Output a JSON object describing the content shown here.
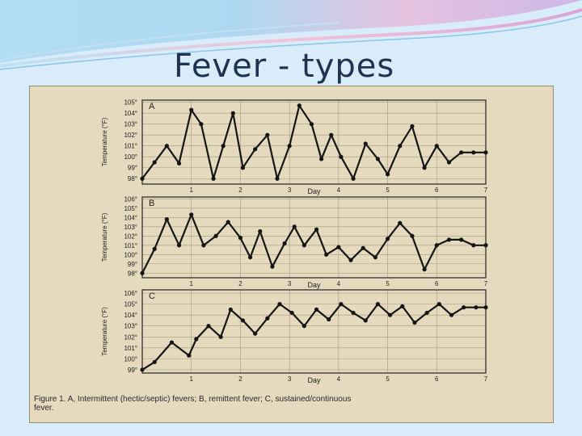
{
  "slide": {
    "title": "Fever - types",
    "theme_colors": {
      "background": "#d8ecf9",
      "title": "#1f3350",
      "photo_paper": "#efe6cd",
      "photo_border": "#7a6a4c"
    }
  },
  "caption": {
    "line1": "Figure 1. A, Intermittent (hectic/septic) fevers; B, remittent fever; C, sustained/continuous",
    "line2": "fever."
  },
  "chart_data": [
    {
      "type": "line",
      "panel_label": "A",
      "xlabel": "Day",
      "ylabel": "Temperature (°F)",
      "yticks": [
        "98°",
        "99°",
        "100°",
        "101°",
        "102°",
        "103°",
        "104°",
        "105°"
      ],
      "xticks": [
        "1",
        "2",
        "3",
        "4",
        "5",
        "6",
        "7"
      ],
      "ylim": [
        97.5,
        105.2
      ],
      "xlim": [
        0,
        7
      ],
      "x": [
        0,
        0.25,
        0.5,
        0.75,
        1,
        1.2,
        1.45,
        1.65,
        1.85,
        2.05,
        2.3,
        2.55,
        2.75,
        3.0,
        3.2,
        3.45,
        3.65,
        3.85,
        4.05,
        4.3,
        4.55,
        4.8,
        5.0,
        5.25,
        5.5,
        5.75,
        6.0,
        6.25,
        6.5,
        6.75,
        7.0
      ],
      "values": [
        98.0,
        99.5,
        101.0,
        99.4,
        104.3,
        103.0,
        98.0,
        101.0,
        104.0,
        99.0,
        100.7,
        102.0,
        98.0,
        101.0,
        104.7,
        103.0,
        99.8,
        102.0,
        100.0,
        98.0,
        101.2,
        99.8,
        98.4,
        101.0,
        102.8,
        99.0,
        101.0,
        99.5,
        100.4,
        100.4,
        100.4
      ],
      "grid": true
    },
    {
      "type": "line",
      "panel_label": "B",
      "xlabel": "Day",
      "ylabel": "Temperature (°F)",
      "yticks": [
        "98°",
        "99°",
        "100°",
        "101°",
        "102°",
        "103°",
        "104°",
        "105°",
        "106°"
      ],
      "xticks": [
        "1",
        "2",
        "3",
        "4",
        "5",
        "6",
        "7"
      ],
      "ylim": [
        97.5,
        106.2
      ],
      "xlim": [
        0,
        7
      ],
      "x": [
        0,
        0.25,
        0.5,
        0.75,
        1,
        1.25,
        1.5,
        1.75,
        2.0,
        2.2,
        2.4,
        2.65,
        2.9,
        3.1,
        3.3,
        3.55,
        3.75,
        4.0,
        4.25,
        4.5,
        4.75,
        5.0,
        5.25,
        5.5,
        5.75,
        6.0,
        6.25,
        6.5,
        6.75,
        7.0
      ],
      "values": [
        98.0,
        100.6,
        103.8,
        101.0,
        104.3,
        101.0,
        102.0,
        103.5,
        101.8,
        99.7,
        102.5,
        98.7,
        101.2,
        103.0,
        101.0,
        102.7,
        100.0,
        100.8,
        99.4,
        100.7,
        99.7,
        101.7,
        103.4,
        102.0,
        98.4,
        101.0,
        101.6,
        101.6,
        101.0,
        101.0
      ],
      "grid": true
    },
    {
      "type": "line",
      "panel_label": "C",
      "xlabel": "Day",
      "ylabel": "Temperature (°F)",
      "yticks": [
        "99°",
        "100°",
        "101°",
        "102°",
        "103°",
        "104°",
        "105°",
        "106°"
      ],
      "xticks": [
        "1",
        "2",
        "3",
        "4",
        "5",
        "6",
        "7"
      ],
      "ylim": [
        98.7,
        106.3
      ],
      "xlim": [
        0,
        7
      ],
      "x": [
        0,
        0.25,
        0.6,
        0.95,
        1.1,
        1.35,
        1.6,
        1.8,
        2.05,
        2.3,
        2.55,
        2.8,
        3.05,
        3.3,
        3.55,
        3.8,
        4.05,
        4.3,
        4.55,
        4.8,
        5.05,
        5.3,
        5.55,
        5.8,
        6.05,
        6.3,
        6.55,
        6.8,
        7.0
      ],
      "values": [
        99.0,
        99.7,
        101.5,
        100.3,
        101.8,
        103.0,
        102.0,
        104.5,
        103.5,
        102.3,
        103.7,
        105.0,
        104.2,
        103.0,
        104.5,
        103.6,
        105.0,
        104.2,
        103.5,
        105.0,
        104.0,
        104.8,
        103.3,
        104.2,
        105.0,
        104.0,
        104.7,
        104.7,
        104.7
      ],
      "grid": true
    }
  ]
}
